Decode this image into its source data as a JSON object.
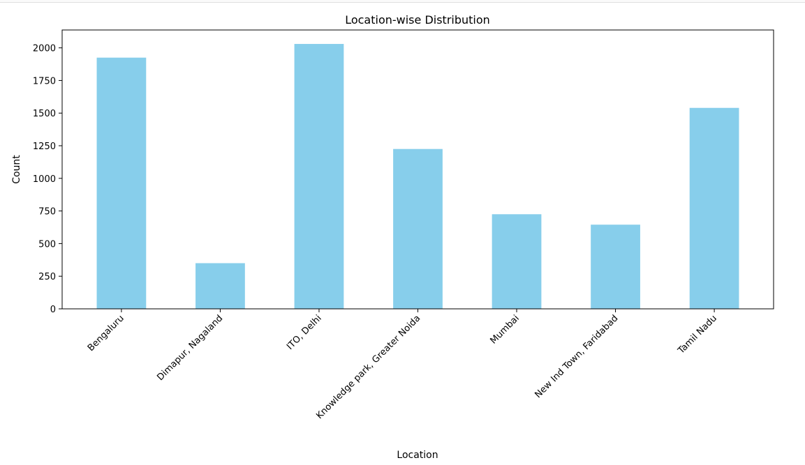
{
  "chart_data": {
    "type": "bar",
    "title": "Location-wise Distribution",
    "xlabel": "Location",
    "ylabel": "Count",
    "categories": [
      "Bengaluru",
      "Dimapur, Nagaland",
      "ITO, Delhi",
      "Knowledge park, Greater Noida",
      "Mumbai",
      "New Ind Town, Faridabad",
      "Tamil Nadu"
    ],
    "values": [
      1925,
      350,
      2030,
      1225,
      725,
      645,
      1540
    ],
    "ylim": [
      0,
      2137
    ],
    "yticks": [
      0,
      250,
      500,
      750,
      1000,
      1250,
      1500,
      1750,
      2000
    ],
    "bar_color": "#87ceeb",
    "grid": false,
    "legend": "none"
  }
}
